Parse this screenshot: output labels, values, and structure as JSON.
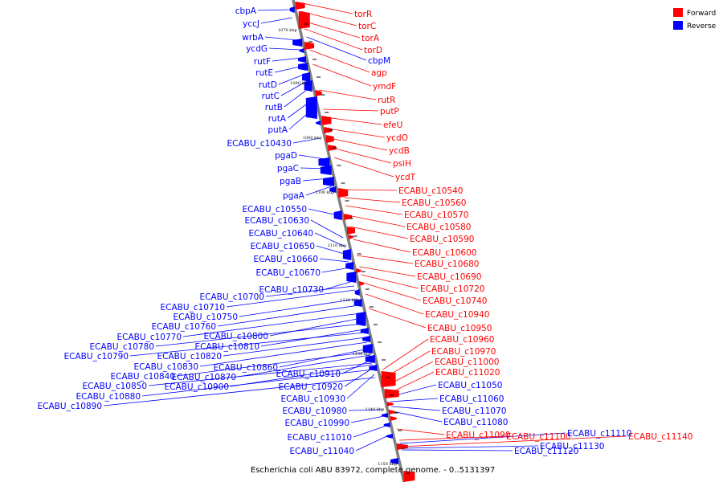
{
  "caption": "Escherichia coli ABU 83972, complete genome. - 0..5131397",
  "legend": [
    {
      "label": "Forward",
      "color": "#ff0000"
    },
    {
      "label": "Reverse",
      "color": "#0000ff"
    }
  ],
  "colors": {
    "forward": "#ff0000",
    "reverse": "#0000ff",
    "backbone": "#808080"
  },
  "ticks": [
    "1070 kbp",
    "1080 kbp",
    "1090 kbp",
    "1100 kbp",
    "1110 kbp",
    "1120 kbp",
    "1130 kbp",
    "1140 kbp",
    "1150 kbp"
  ],
  "genes": [
    {
      "name": "cbpA",
      "strand": "reverse"
    },
    {
      "name": "yccJ",
      "strand": "reverse"
    },
    {
      "name": "wrbA",
      "strand": "reverse"
    },
    {
      "name": "ycdG",
      "strand": "reverse"
    },
    {
      "name": "rutF",
      "strand": "reverse"
    },
    {
      "name": "rutE",
      "strand": "reverse"
    },
    {
      "name": "rutD",
      "strand": "reverse"
    },
    {
      "name": "rutC",
      "strand": "reverse"
    },
    {
      "name": "rutB",
      "strand": "reverse"
    },
    {
      "name": "rutA",
      "strand": "reverse"
    },
    {
      "name": "putA",
      "strand": "reverse"
    },
    {
      "name": "ECABU_c10430",
      "strand": "reverse"
    },
    {
      "name": "pgaD",
      "strand": "reverse"
    },
    {
      "name": "pgaC",
      "strand": "reverse"
    },
    {
      "name": "pgaB",
      "strand": "reverse"
    },
    {
      "name": "pgaA",
      "strand": "reverse"
    },
    {
      "name": "ECABU_c10550",
      "strand": "reverse"
    },
    {
      "name": "ECABU_c10630",
      "strand": "reverse"
    },
    {
      "name": "ECABU_c10640",
      "strand": "reverse"
    },
    {
      "name": "ECABU_c10650",
      "strand": "reverse"
    },
    {
      "name": "ECABU_c10660",
      "strand": "reverse"
    },
    {
      "name": "ECABU_c10670",
      "strand": "reverse"
    },
    {
      "name": "ECABU_c10730",
      "strand": "reverse"
    },
    {
      "name": "ECABU_c10700",
      "strand": "reverse"
    },
    {
      "name": "ECABU_c10710",
      "strand": "reverse"
    },
    {
      "name": "ECABU_c10750",
      "strand": "reverse"
    },
    {
      "name": "ECABU_c10760",
      "strand": "reverse"
    },
    {
      "name": "ECABU_c10770",
      "strand": "reverse"
    },
    {
      "name": "ECABU_c10800",
      "strand": "reverse"
    },
    {
      "name": "ECABU_c10780",
      "strand": "reverse"
    },
    {
      "name": "ECABU_c10810",
      "strand": "reverse"
    },
    {
      "name": "ECABU_c10790",
      "strand": "reverse"
    },
    {
      "name": "ECABU_c10820",
      "strand": "reverse"
    },
    {
      "name": "ECABU_c10830",
      "strand": "reverse"
    },
    {
      "name": "ECABU_c10860",
      "strand": "reverse"
    },
    {
      "name": "ECABU_c10840",
      "strand": "reverse"
    },
    {
      "name": "ECABU_c10870",
      "strand": "reverse"
    },
    {
      "name": "ECABU_c10910",
      "strand": "reverse"
    },
    {
      "name": "ECABU_c10850",
      "strand": "reverse"
    },
    {
      "name": "ECABU_c10900",
      "strand": "reverse"
    },
    {
      "name": "ECABU_c10920",
      "strand": "reverse"
    },
    {
      "name": "ECABU_c10880",
      "strand": "reverse"
    },
    {
      "name": "ECABU_c10930",
      "strand": "reverse"
    },
    {
      "name": "ECABU_c10890",
      "strand": "reverse"
    },
    {
      "name": "ECABU_c10980",
      "strand": "reverse"
    },
    {
      "name": "ECABU_c10990",
      "strand": "reverse"
    },
    {
      "name": "ECABU_c11010",
      "strand": "reverse"
    },
    {
      "name": "ECABU_c11040",
      "strand": "reverse"
    },
    {
      "name": "torR",
      "strand": "forward"
    },
    {
      "name": "torC",
      "strand": "forward"
    },
    {
      "name": "torA",
      "strand": "forward"
    },
    {
      "name": "torD",
      "strand": "forward"
    },
    {
      "name": "cbpM",
      "strand": "reverse"
    },
    {
      "name": "agp",
      "strand": "forward"
    },
    {
      "name": "ymdF",
      "strand": "forward"
    },
    {
      "name": "rutR",
      "strand": "forward"
    },
    {
      "name": "putP",
      "strand": "forward"
    },
    {
      "name": "efeU",
      "strand": "forward"
    },
    {
      "name": "ycdO",
      "strand": "forward"
    },
    {
      "name": "ycdB",
      "strand": "forward"
    },
    {
      "name": "psiH",
      "strand": "forward"
    },
    {
      "name": "ycdT",
      "strand": "forward"
    },
    {
      "name": "ECABU_c10540",
      "strand": "forward"
    },
    {
      "name": "ECABU_c10560",
      "strand": "forward"
    },
    {
      "name": "ECABU_c10570",
      "strand": "forward"
    },
    {
      "name": "ECABU_c10580",
      "strand": "forward"
    },
    {
      "name": "ECABU_c10590",
      "strand": "forward"
    },
    {
      "name": "ECABU_c10600",
      "strand": "forward"
    },
    {
      "name": "ECABU_c10680",
      "strand": "forward"
    },
    {
      "name": "ECABU_c10690",
      "strand": "forward"
    },
    {
      "name": "ECABU_c10720",
      "strand": "forward"
    },
    {
      "name": "ECABU_c10740",
      "strand": "forward"
    },
    {
      "name": "ECABU_c10940",
      "strand": "forward"
    },
    {
      "name": "ECABU_c10950",
      "strand": "forward"
    },
    {
      "name": "ECABU_c10960",
      "strand": "forward"
    },
    {
      "name": "ECABU_c10970",
      "strand": "forward"
    },
    {
      "name": "ECABU_c11000",
      "strand": "forward"
    },
    {
      "name": "ECABU_c11020",
      "strand": "forward"
    },
    {
      "name": "ECABU_c11050",
      "strand": "reverse"
    },
    {
      "name": "ECABU_c11060",
      "strand": "reverse"
    },
    {
      "name": "ECABU_c11070",
      "strand": "reverse"
    },
    {
      "name": "ECABU_c11080",
      "strand": "reverse"
    },
    {
      "name": "ECABU_c11090",
      "strand": "forward"
    },
    {
      "name": "ECABU_c11100",
      "strand": "forward"
    },
    {
      "name": "ECABU_c11120",
      "strand": "reverse"
    },
    {
      "name": "ECABU_c11130",
      "strand": "reverse"
    },
    {
      "name": "ECABU_c11110",
      "strand": "reverse"
    },
    {
      "name": "ECABU_c11140",
      "strand": "forward"
    }
  ]
}
